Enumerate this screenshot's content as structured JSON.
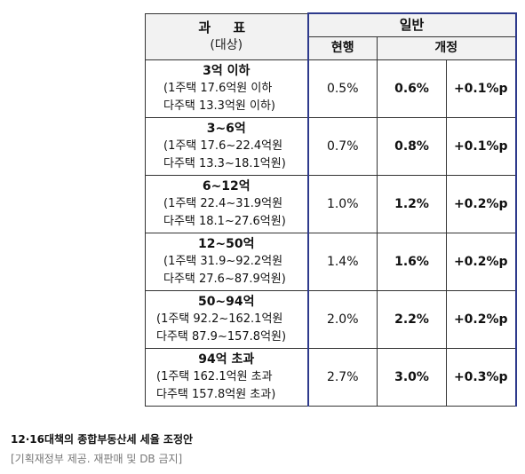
{
  "header": {
    "category_label": "과 표",
    "category_sub": "(대상)",
    "general_label": "일반",
    "current_label": "현행",
    "revised_label": "개정"
  },
  "rows": [
    {
      "title": "3억 이하",
      "line1": "(1주택 17.6억원 이하",
      "line2": "다주택 13.3억원 이하)",
      "current": "0.5%",
      "revised": "0.6%",
      "change": "+0.1%p"
    },
    {
      "title": "3~6억",
      "line1": "(1주택 17.6~22.4억원",
      "line2": "다주택 13.3~18.1억원)",
      "current": "0.7%",
      "revised": "0.8%",
      "change": "+0.1%p"
    },
    {
      "title": "6~12억",
      "line1": "(1주택 22.4~31.9억원",
      "line2": "다주택 18.1~27.6억원)",
      "current": "1.0%",
      "revised": "1.2%",
      "change": "+0.2%p"
    },
    {
      "title": "12~50억",
      "line1": "(1주택 31.9~92.2억원",
      "line2": "다주택 27.6~87.9억원)",
      "current": "1.4%",
      "revised": "1.6%",
      "change": "+0.2%p"
    },
    {
      "title": "50~94억",
      "line1": "(1주택 92.2~162.1억원",
      "line2": "다주택 87.9~157.8억원)",
      "current": "2.0%",
      "revised": "2.2%",
      "change": "+0.2%p"
    },
    {
      "title": "94억 초과",
      "line1": "(1주택 162.1억원 초과",
      "line2": "다주택 157.8억원 초과)",
      "current": "2.7%",
      "revised": "3.0%",
      "change": "+0.3%p"
    }
  ],
  "caption": "12·16대책의 종합부동산세 세율 조정안",
  "credit": "[기획재정부 제공. 재판매 및 DB 금지]"
}
